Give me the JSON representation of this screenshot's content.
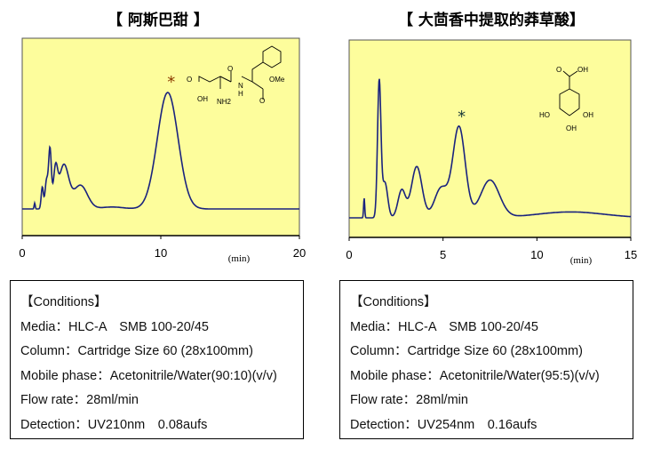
{
  "chart_data": [
    {
      "type": "line",
      "title": "【 阿斯巴甜 】",
      "xlabel": "(min)",
      "xlim": [
        0,
        20
      ],
      "xticks": [
        "0",
        "10",
        "20"
      ],
      "ylim": [
        0,
        100
      ],
      "grid": false,
      "background": "#fdfd9c",
      "line_color": "#1a237e",
      "annotation": "*",
      "annotation_at_min": 10.5,
      "structure_labels": [
        "OH",
        "O",
        "NH2",
        "O",
        "N",
        "H",
        "OMe",
        "O"
      ],
      "baseline": 13.5,
      "peaks": [
        {
          "t": 0.9,
          "h": 3,
          "sigma": 0.04
        },
        {
          "t": 1.45,
          "h": 11,
          "sigma": 0.08
        },
        {
          "t": 1.75,
          "h": 14,
          "sigma": 0.1
        },
        {
          "t": 2.0,
          "h": 30,
          "sigma": 0.1
        },
        {
          "t": 2.4,
          "h": 18,
          "sigma": 0.15
        },
        {
          "t": 3.0,
          "h": 22,
          "sigma": 0.35
        },
        {
          "t": 4.2,
          "h": 12,
          "sigma": 0.5
        },
        {
          "t": 6.5,
          "h": 1,
          "sigma": 0.8
        },
        {
          "t": 10.5,
          "h": 59,
          "sigma": 0.75
        }
      ]
    },
    {
      "type": "line",
      "title": "【 大茴香中提取的莽草酸】",
      "xlabel": "(min)",
      "xlim": [
        0,
        15
      ],
      "xticks": [
        "0",
        "5",
        "10",
        "15"
      ],
      "ylim": [
        0,
        100
      ],
      "grid": false,
      "background": "#fdfd9c",
      "line_color": "#1a237e",
      "annotation": "*",
      "annotation_at_min": 5.8,
      "structure_labels": [
        "O",
        "OH",
        "HO",
        "OH",
        "OH"
      ],
      "baseline": 9.9,
      "peaks": [
        {
          "t": 0.8,
          "h": 10,
          "sigma": 0.03
        },
        {
          "t": 1.6,
          "h": 68,
          "sigma": 0.09
        },
        {
          "t": 1.9,
          "h": 18,
          "sigma": 0.15
        },
        {
          "t": 2.8,
          "h": 14,
          "sigma": 0.2
        },
        {
          "t": 3.6,
          "h": 26,
          "sigma": 0.28
        },
        {
          "t": 4.9,
          "h": 15,
          "sigma": 0.35
        },
        {
          "t": 5.85,
          "h": 46,
          "sigma": 0.33
        },
        {
          "t": 7.5,
          "h": 19,
          "sigma": 0.5
        },
        {
          "t": 11.8,
          "h": 3,
          "sigma": 1.8
        }
      ]
    }
  ],
  "conditions": [
    {
      "heading": "【Conditions】",
      "lines": [
        "Media：HLC-A　SMB 100-20/45",
        "Column：Cartridge Size 60 (28x100mm)",
        "Mobile phase：Acetonitrile/Water(90:10)(v/v)",
        "Flow rate：28ml/min",
        "Detection：UV210nm　0.08aufs"
      ]
    },
    {
      "heading": "【Conditions】",
      "lines": [
        "Media：HLC-A　SMB 100-20/45",
        "Column：Cartridge Size 60 (28x100mm)",
        "Mobile phase：Acetonitrile/Water(95:5)(v/v)",
        "Flow rate：28ml/min",
        "Detection：UV254nm　0.16aufs"
      ]
    }
  ]
}
